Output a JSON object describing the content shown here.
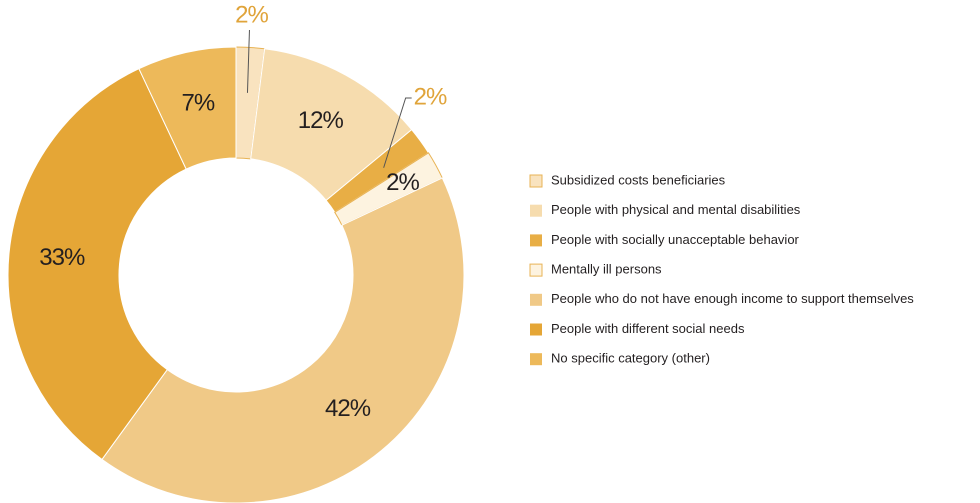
{
  "chart_data": {
    "type": "donut",
    "categories": [
      "Subsidized costs beneficiaries",
      "People with physical and mental disabilities",
      "People with socially unacceptable behavior",
      "Mentally ill persons",
      "People who do not have enough income to support themselves",
      "People with different social needs",
      "No specific category (other)"
    ],
    "values": [
      2,
      12,
      2,
      2,
      42,
      33,
      7
    ],
    "value_labels": [
      "2%",
      "12%",
      "2%",
      "2%",
      "42%",
      "33%",
      "7%"
    ],
    "colors": [
      "#f9e3bf",
      "#f6dcae",
      "#e8ae45",
      "#fdf3e0",
      "#f0c987",
      "#e5a636",
      "#edb95a"
    ],
    "legend": "right"
  }
}
